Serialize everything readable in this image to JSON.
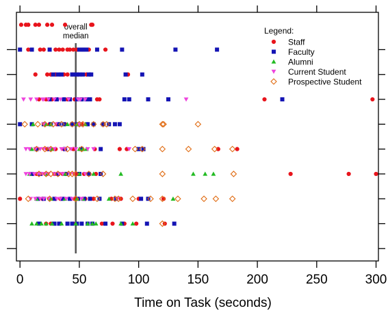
{
  "chart_data": {
    "type": "scatter",
    "title": "",
    "xlabel": "Time on Task (seconds)",
    "ylabel": "",
    "xlim": [
      -3,
      302
    ],
    "ylim": [
      0.5,
      10.5
    ],
    "x_ticks": [
      0,
      50,
      100,
      150,
      200,
      250,
      300
    ],
    "y_tick_count": 9,
    "grid": false,
    "legend_title": "Legend:",
    "legend_position": "top-right",
    "median": {
      "value": 47,
      "label_line1": "overall",
      "label_line2": "median"
    },
    "series": [
      {
        "name": "Staff",
        "marker": "circle",
        "color": "#e8141c",
        "points": [
          [
            1,
            10
          ],
          [
            5,
            10
          ],
          [
            7,
            10
          ],
          [
            13,
            10
          ],
          [
            16,
            10
          ],
          [
            23,
            10
          ],
          [
            27,
            10
          ],
          [
            38,
            10
          ],
          [
            60,
            10
          ],
          [
            61,
            10
          ],
          [
            7,
            9
          ],
          [
            17,
            9
          ],
          [
            20,
            9
          ],
          [
            30,
            9
          ],
          [
            33,
            9
          ],
          [
            36,
            9
          ],
          [
            40,
            9
          ],
          [
            42,
            9
          ],
          [
            45,
            9
          ],
          [
            48,
            9
          ],
          [
            53,
            9
          ],
          [
            58,
            9
          ],
          [
            72,
            9
          ],
          [
            13,
            8
          ],
          [
            23,
            8
          ],
          [
            26,
            8
          ],
          [
            30,
            8
          ],
          [
            37,
            8
          ],
          [
            40,
            8
          ],
          [
            44,
            8
          ],
          [
            49,
            8
          ],
          [
            56,
            8
          ],
          [
            91,
            8
          ],
          [
            16,
            7
          ],
          [
            22,
            7
          ],
          [
            27,
            7
          ],
          [
            40,
            7
          ],
          [
            46,
            7
          ],
          [
            52,
            7
          ],
          [
            65,
            7
          ],
          [
            67,
            7
          ],
          [
            206,
            7
          ],
          [
            297,
            7
          ],
          [
            25,
            6
          ],
          [
            31,
            6
          ],
          [
            38,
            6
          ],
          [
            47,
            6
          ],
          [
            52,
            6
          ],
          [
            57,
            6
          ],
          [
            23,
            5
          ],
          [
            30,
            5
          ],
          [
            37,
            5
          ],
          [
            45,
            5
          ],
          [
            52,
            5
          ],
          [
            63,
            5
          ],
          [
            84,
            5
          ],
          [
            90,
            5
          ],
          [
            167,
            5
          ],
          [
            183,
            5
          ],
          [
            14,
            4
          ],
          [
            23,
            4
          ],
          [
            29,
            4
          ],
          [
            36,
            4
          ],
          [
            48,
            4
          ],
          [
            54,
            4
          ],
          [
            64,
            4
          ],
          [
            228,
            4
          ],
          [
            277,
            4
          ],
          [
            300,
            4
          ],
          [
            0,
            3
          ],
          [
            19,
            3
          ],
          [
            30,
            3
          ],
          [
            34,
            3
          ],
          [
            46,
            3
          ],
          [
            55,
            3
          ],
          [
            62,
            3
          ],
          [
            77,
            3
          ],
          [
            85,
            3
          ],
          [
            100,
            3
          ],
          [
            121,
            3
          ],
          [
            22,
            2
          ],
          [
            26,
            2
          ],
          [
            34,
            2
          ],
          [
            45,
            2
          ],
          [
            69,
            2
          ],
          [
            78,
            2
          ],
          [
            88,
            2
          ],
          [
            98,
            2
          ],
          [
            122,
            2
          ]
        ]
      },
      {
        "name": "Faculty",
        "marker": "square",
        "color": "#1414b4",
        "points": [
          [
            0,
            9
          ],
          [
            10,
            9
          ],
          [
            25,
            9
          ],
          [
            50,
            9
          ],
          [
            53,
            9
          ],
          [
            56,
            9
          ],
          [
            65,
            9
          ],
          [
            86,
            9
          ],
          [
            131,
            9
          ],
          [
            166,
            9
          ],
          [
            28,
            8
          ],
          [
            32,
            8
          ],
          [
            35,
            8
          ],
          [
            44,
            8
          ],
          [
            47,
            8
          ],
          [
            50,
            8
          ],
          [
            53,
            8
          ],
          [
            58,
            8
          ],
          [
            60,
            8
          ],
          [
            89,
            8
          ],
          [
            103,
            8
          ],
          [
            25,
            7
          ],
          [
            31,
            7
          ],
          [
            37,
            7
          ],
          [
            42,
            7
          ],
          [
            48,
            7
          ],
          [
            52,
            7
          ],
          [
            56,
            7
          ],
          [
            59,
            7
          ],
          [
            88,
            7
          ],
          [
            92,
            7
          ],
          [
            108,
            7
          ],
          [
            125,
            7
          ],
          [
            221,
            7
          ],
          [
            0,
            6
          ],
          [
            10,
            6
          ],
          [
            20,
            6
          ],
          [
            26,
            6
          ],
          [
            33,
            6
          ],
          [
            37,
            6
          ],
          [
            44,
            6
          ],
          [
            48,
            6
          ],
          [
            50,
            6
          ],
          [
            57,
            6
          ],
          [
            62,
            6
          ],
          [
            70,
            6
          ],
          [
            75,
            6
          ],
          [
            80,
            6
          ],
          [
            84,
            6
          ],
          [
            14,
            5
          ],
          [
            25,
            5
          ],
          [
            38,
            5
          ],
          [
            52,
            5
          ],
          [
            68,
            5
          ],
          [
            100,
            5
          ],
          [
            104,
            5
          ],
          [
            10,
            4
          ],
          [
            17,
            4
          ],
          [
            32,
            4
          ],
          [
            39,
            4
          ],
          [
            50,
            4
          ],
          [
            58,
            4
          ],
          [
            68,
            4
          ],
          [
            15,
            3
          ],
          [
            20,
            3
          ],
          [
            29,
            3
          ],
          [
            36,
            3
          ],
          [
            42,
            3
          ],
          [
            49,
            3
          ],
          [
            54,
            3
          ],
          [
            59,
            3
          ],
          [
            67,
            3
          ],
          [
            81,
            3
          ],
          [
            102,
            3
          ],
          [
            108,
            3
          ],
          [
            16,
            2
          ],
          [
            29,
            2
          ],
          [
            33,
            2
          ],
          [
            40,
            2
          ],
          [
            44,
            2
          ],
          [
            48,
            2
          ],
          [
            52,
            2
          ],
          [
            57,
            2
          ],
          [
            61,
            2
          ],
          [
            72,
            2
          ],
          [
            86,
            2
          ],
          [
            107,
            2
          ],
          [
            130,
            2
          ]
        ]
      },
      {
        "name": "Alumni",
        "marker": "triangle-up",
        "color": "#22bb22",
        "points": [
          [
            11,
            6
          ],
          [
            22,
            6
          ],
          [
            26,
            6
          ],
          [
            40,
            6
          ],
          [
            48,
            6
          ],
          [
            55,
            6
          ],
          [
            10,
            5
          ],
          [
            27,
            5
          ],
          [
            50,
            5
          ],
          [
            53,
            5
          ],
          [
            56,
            5
          ],
          [
            8,
            4
          ],
          [
            22,
            4
          ],
          [
            38,
            4
          ],
          [
            50,
            4
          ],
          [
            62,
            4
          ],
          [
            85,
            4
          ],
          [
            146,
            4
          ],
          [
            156,
            4
          ],
          [
            163,
            4
          ],
          [
            14,
            3
          ],
          [
            26,
            3
          ],
          [
            38,
            3
          ],
          [
            48,
            3
          ],
          [
            53,
            3
          ],
          [
            75,
            3
          ],
          [
            129,
            3
          ],
          [
            10,
            2
          ],
          [
            14,
            2
          ],
          [
            18,
            2
          ],
          [
            22,
            2
          ],
          [
            27,
            2
          ],
          [
            35,
            2
          ],
          [
            47,
            2
          ],
          [
            57,
            2
          ],
          [
            61,
            2
          ],
          [
            64,
            2
          ],
          [
            85,
            2
          ],
          [
            95,
            2
          ]
        ]
      },
      {
        "name": "Current Student",
        "marker": "triangle-down",
        "color": "#ee44dd",
        "points": [
          [
            3,
            7
          ],
          [
            9,
            7
          ],
          [
            14,
            7
          ],
          [
            19,
            7
          ],
          [
            20,
            7
          ],
          [
            24,
            7
          ],
          [
            29,
            7
          ],
          [
            34,
            7
          ],
          [
            41,
            7
          ],
          [
            49,
            7
          ],
          [
            51,
            7
          ],
          [
            55,
            7
          ],
          [
            140,
            7
          ],
          [
            20,
            6
          ],
          [
            30,
            6
          ],
          [
            50,
            6
          ],
          [
            5,
            5
          ],
          [
            8,
            5
          ],
          [
            13,
            5
          ],
          [
            17,
            5
          ],
          [
            20,
            5
          ],
          [
            25,
            5
          ],
          [
            29,
            5
          ],
          [
            35,
            5
          ],
          [
            38,
            5
          ],
          [
            43,
            5
          ],
          [
            47,
            5
          ],
          [
            57,
            5
          ],
          [
            62,
            5
          ],
          [
            92,
            5
          ],
          [
            5,
            4
          ],
          [
            8,
            4
          ],
          [
            12,
            4
          ],
          [
            15,
            4
          ],
          [
            17,
            4
          ],
          [
            19,
            4
          ],
          [
            21,
            4
          ],
          [
            24,
            4
          ],
          [
            29,
            4
          ],
          [
            33,
            4
          ],
          [
            36,
            4
          ],
          [
            42,
            4
          ],
          [
            45,
            4
          ],
          [
            55,
            4
          ],
          [
            9,
            3
          ],
          [
            13,
            3
          ],
          [
            17,
            3
          ],
          [
            20,
            3
          ],
          [
            24,
            3
          ],
          [
            31,
            3
          ],
          [
            34,
            3
          ],
          [
            39,
            3
          ],
          [
            44,
            3
          ],
          [
            52,
            3
          ],
          [
            82,
            3
          ]
        ]
      },
      {
        "name": "Prospective Student",
        "marker": "diamond-open",
        "color": "#e06a10",
        "points": [
          [
            4,
            6
          ],
          [
            15,
            6
          ],
          [
            21,
            6
          ],
          [
            28,
            6
          ],
          [
            35,
            6
          ],
          [
            44,
            6
          ],
          [
            50,
            6
          ],
          [
            53,
            6
          ],
          [
            62,
            6
          ],
          [
            70,
            6
          ],
          [
            73,
            6
          ],
          [
            120,
            6
          ],
          [
            121,
            6
          ],
          [
            150,
            6
          ],
          [
            14,
            5
          ],
          [
            21,
            5
          ],
          [
            26,
            5
          ],
          [
            40,
            5
          ],
          [
            52,
            5
          ],
          [
            97,
            5
          ],
          [
            103,
            5
          ],
          [
            120,
            5
          ],
          [
            142,
            5
          ],
          [
            164,
            5
          ],
          [
            179,
            5
          ],
          [
            16,
            4
          ],
          [
            22,
            4
          ],
          [
            26,
            4
          ],
          [
            32,
            4
          ],
          [
            41,
            4
          ],
          [
            44,
            4
          ],
          [
            47,
            4
          ],
          [
            58,
            4
          ],
          [
            70,
            4
          ],
          [
            120,
            4
          ],
          [
            180,
            4
          ],
          [
            7,
            3
          ],
          [
            25,
            3
          ],
          [
            47,
            3
          ],
          [
            65,
            3
          ],
          [
            80,
            3
          ],
          [
            83,
            3
          ],
          [
            95,
            3
          ],
          [
            110,
            3
          ],
          [
            120,
            3
          ],
          [
            133,
            3
          ],
          [
            155,
            3
          ],
          [
            165,
            3
          ],
          [
            179,
            3
          ],
          [
            120,
            2
          ]
        ]
      }
    ]
  }
}
